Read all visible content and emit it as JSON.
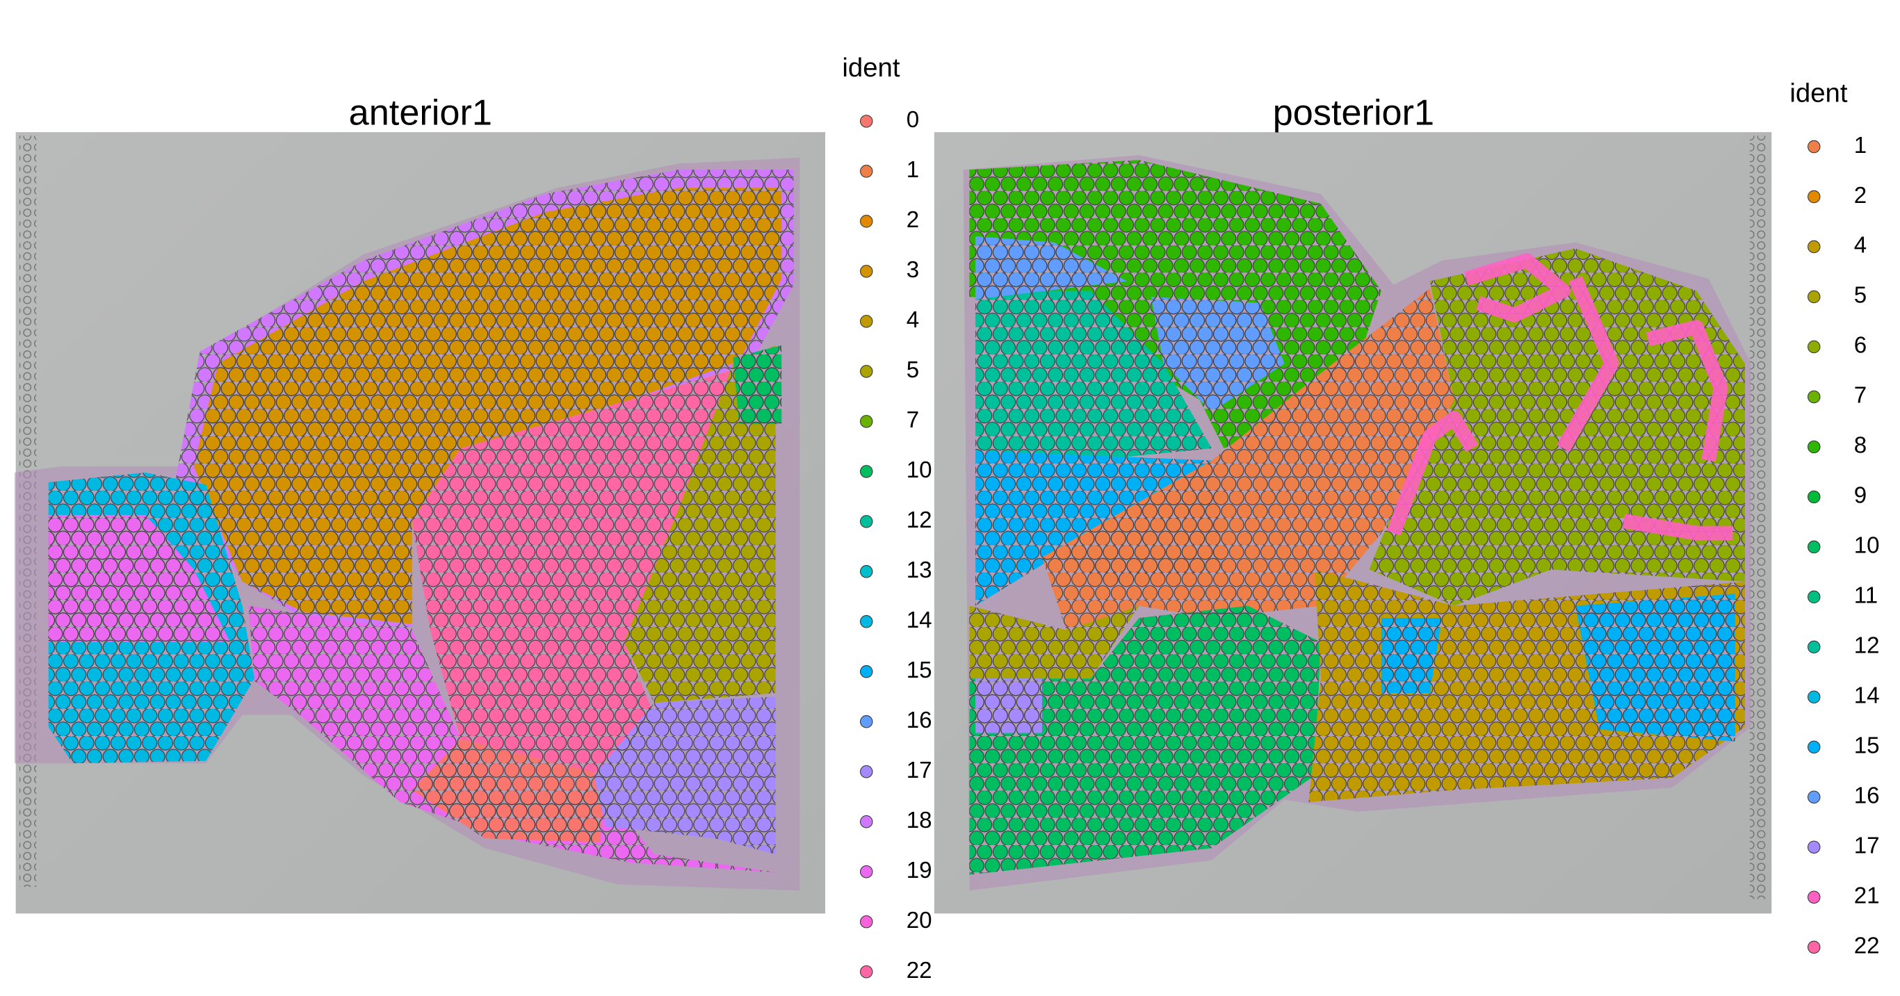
{
  "panels": [
    {
      "title": "anterior1",
      "legend": {
        "title": "ident",
        "items": [
          {
            "label": "0",
            "color": "#F8766D"
          },
          {
            "label": "1",
            "color": "#EF7F49"
          },
          {
            "label": "2",
            "color": "#E38900"
          },
          {
            "label": "3",
            "color": "#D39200"
          },
          {
            "label": "4",
            "color": "#C09B00"
          },
          {
            "label": "5",
            "color": "#A9A400"
          },
          {
            "label": "7",
            "color": "#6BB100"
          },
          {
            "label": "10",
            "color": "#00BD61"
          },
          {
            "label": "12",
            "color": "#00C09C"
          },
          {
            "label": "13",
            "color": "#00BECB"
          },
          {
            "label": "14",
            "color": "#00B9E3"
          },
          {
            "label": "15",
            "color": "#00B0F6"
          },
          {
            "label": "16",
            "color": "#619CFF"
          },
          {
            "label": "17",
            "color": "#A58AFF"
          },
          {
            "label": "18",
            "color": "#D078FF"
          },
          {
            "label": "19",
            "color": "#EB69F0"
          },
          {
            "label": "20",
            "color": "#FA62DB"
          },
          {
            "label": "22",
            "color": "#FF67A4"
          }
        ]
      }
    },
    {
      "title": "posterior1",
      "legend": {
        "title": "ident",
        "items": [
          {
            "label": "1",
            "color": "#EF7F49"
          },
          {
            "label": "2",
            "color": "#E38900"
          },
          {
            "label": "4",
            "color": "#C09B00"
          },
          {
            "label": "5",
            "color": "#A9A400"
          },
          {
            "label": "6",
            "color": "#8EAB00"
          },
          {
            "label": "7",
            "color": "#6BB100"
          },
          {
            "label": "8",
            "color": "#2FB600"
          },
          {
            "label": "9",
            "color": "#00BA38"
          },
          {
            "label": "10",
            "color": "#00BD61"
          },
          {
            "label": "11",
            "color": "#00BF80"
          },
          {
            "label": "12",
            "color": "#00C09C"
          },
          {
            "label": "14",
            "color": "#00B9E3"
          },
          {
            "label": "15",
            "color": "#00B0F6"
          },
          {
            "label": "16",
            "color": "#619CFF"
          },
          {
            "label": "17",
            "color": "#A58AFF"
          },
          {
            "label": "21",
            "color": "#FF61C3"
          },
          {
            "label": "22",
            "color": "#FF67A4"
          }
        ]
      }
    }
  ]
}
